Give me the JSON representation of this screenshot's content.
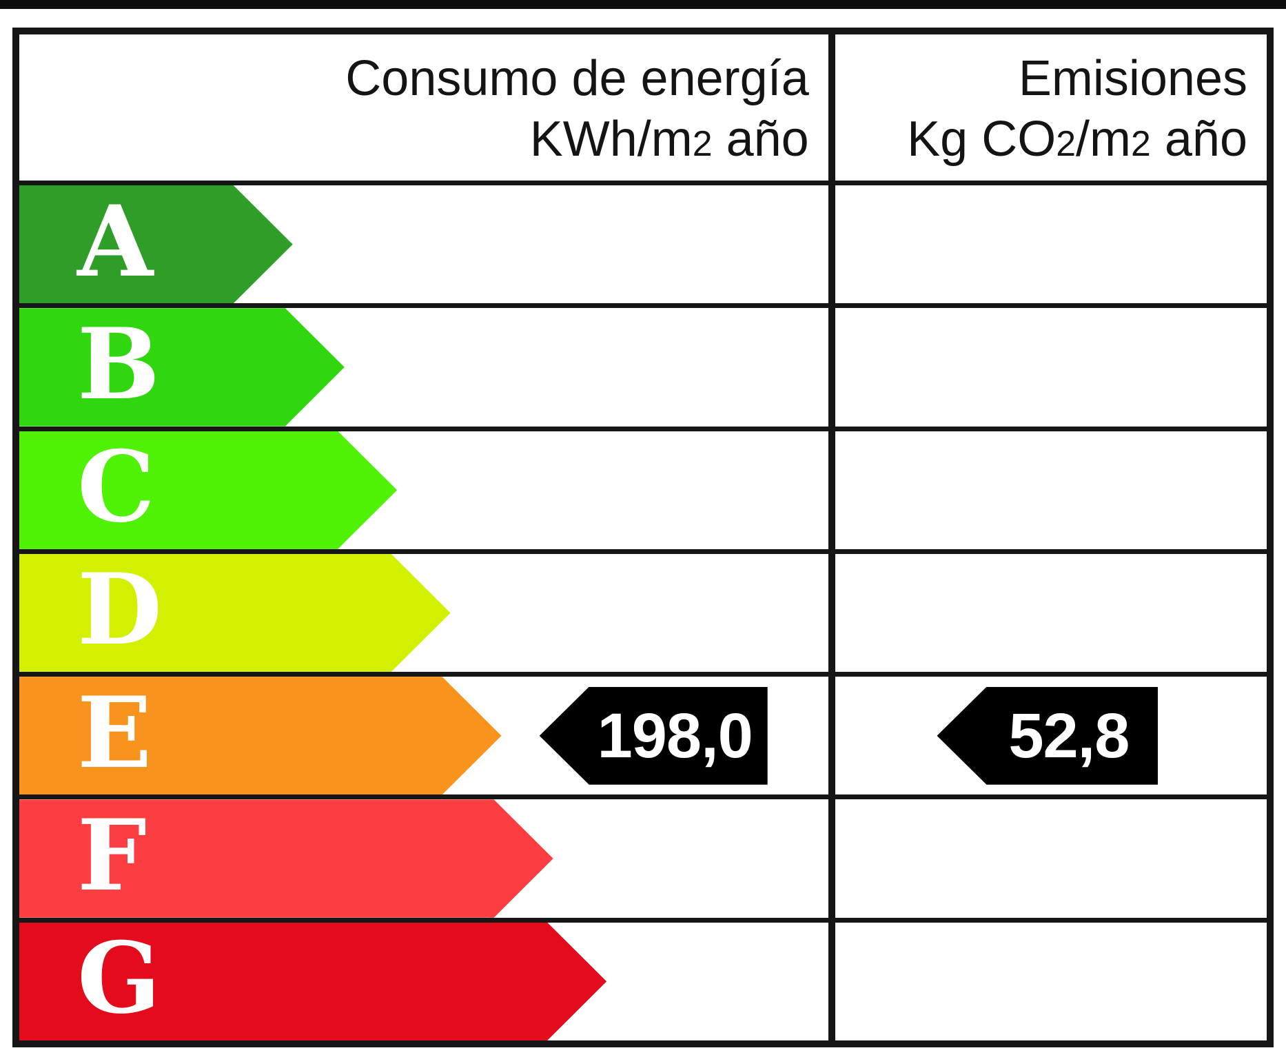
{
  "page": {
    "background": "#ffffff",
    "line_color": "#161616",
    "top_strip_color": "#0d0d0d"
  },
  "header": {
    "consumption": {
      "line1": "Consumo de energía",
      "line2_pre": "KWh/m",
      "line2_sup": "2",
      "line2_post": " año"
    },
    "emissions": {
      "line1": "Emisiones",
      "line2_pre": "Kg CO",
      "line2_sub": "2",
      "line2_mid": "/m",
      "line2_sup": "2",
      "line2_post": " año"
    }
  },
  "ratings": [
    {
      "grade": "A",
      "color": "#2f9e29",
      "arrow_pct": 33.8
    },
    {
      "grade": "B",
      "color": "#30d60e",
      "arrow_pct": 40.2
    },
    {
      "grade": "C",
      "color": "#4ff104",
      "arrow_pct": 46.7
    },
    {
      "grade": "D",
      "color": "#d4f001",
      "arrow_pct": 53.3
    },
    {
      "grade": "E",
      "color": "#f8941d",
      "arrow_pct": 59.6
    },
    {
      "grade": "F",
      "color": "#fc3d41",
      "arrow_pct": 66.0
    },
    {
      "grade": "G",
      "color": "#e30b1c",
      "arrow_pct": 72.6
    }
  ],
  "indicator": {
    "grade": "E",
    "consumption_value": "198,0",
    "emissions_value": "52,8",
    "tag_color": "#000000",
    "text_color": "#ffffff"
  },
  "chart_data": {
    "type": "table",
    "title": "",
    "columns": [
      "Consumo de energía KWh/m2 año",
      "Emisiones Kg CO2/m2 año"
    ],
    "scale_grades": [
      "A",
      "B",
      "C",
      "D",
      "E",
      "F",
      "G"
    ],
    "scale_colors": [
      "#2f9e29",
      "#30d60e",
      "#4ff104",
      "#d4f001",
      "#f8941d",
      "#fc3d41",
      "#e30b1c"
    ],
    "arrow_relative_lengths_pct": [
      33.8,
      40.2,
      46.7,
      53.3,
      59.6,
      66.0,
      72.6
    ],
    "rated_grade": "E",
    "values": {
      "consumo_de_energia_kwh_m2_ano": 198.0,
      "emisiones_kg_co2_m2_ano": 52.8
    },
    "values_display": [
      "198,0",
      "52,8"
    ],
    "legend_position": "none",
    "grid": false
  }
}
